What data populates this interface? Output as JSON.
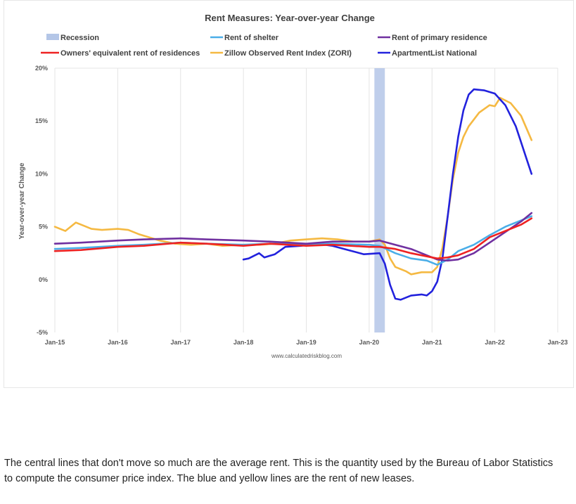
{
  "caption": "The central lines that don't move so much are the average rent. This is the quantity used by the Bureau of Labor Statistics to compute the consumer price index. The blue and yellow lines are the rent of new leases.",
  "chart_data": {
    "type": "line",
    "title": "Rent Measures: Year-over-year Change",
    "xlabel": "",
    "ylabel": "Year-over-year Change",
    "source": "www.calculatedriskblog.com",
    "x_ticks": [
      "Jan-15",
      "Jan-16",
      "Jan-17",
      "Jan-18",
      "Jan-19",
      "Jan-20",
      "Jan-21",
      "Jan-22",
      "Jan-23"
    ],
    "y_ticks": [
      "-5%",
      "0%",
      "5%",
      "10%",
      "15%",
      "20%"
    ],
    "xlim": [
      "2015-01",
      "2023-01"
    ],
    "ylim": [
      -5,
      20
    ],
    "grid": "vertical",
    "legend": [
      {
        "name": "Recession",
        "color": "#b4c6e7",
        "kind": "band"
      },
      {
        "name": "Rent of shelter",
        "color": "#4aaee8",
        "kind": "line"
      },
      {
        "name": "Rent of primary residence",
        "color": "#7030a0",
        "kind": "line"
      },
      {
        "name": "Owners' equivalent rent of residences",
        "color": "#ee2222",
        "kind": "line"
      },
      {
        "name": "Zillow Observed Rent Index (ZORI)",
        "color": "#f5b942",
        "kind": "line"
      },
      {
        "name": "ApartmentList National",
        "color": "#2222dd",
        "kind": "line"
      }
    ],
    "recession": {
      "start": "2020-02",
      "end": "2020-04"
    },
    "series": [
      {
        "name": "Zillow Observed Rent Index (ZORI)",
        "color": "#f5b942",
        "points": [
          [
            "2015-01",
            5.0
          ],
          [
            "2015-03",
            4.6
          ],
          [
            "2015-05",
            5.4
          ],
          [
            "2015-07",
            5.0
          ],
          [
            "2015-08",
            4.8
          ],
          [
            "2015-10",
            4.7
          ],
          [
            "2016-01",
            4.8
          ],
          [
            "2016-03",
            4.7
          ],
          [
            "2016-05",
            4.3
          ],
          [
            "2016-07",
            4.0
          ],
          [
            "2016-09",
            3.7
          ],
          [
            "2016-12",
            3.4
          ],
          [
            "2017-03",
            3.3
          ],
          [
            "2017-06",
            3.4
          ],
          [
            "2017-09",
            3.2
          ],
          [
            "2018-01",
            3.3
          ],
          [
            "2018-04",
            3.3
          ],
          [
            "2018-07",
            3.4
          ],
          [
            "2018-10",
            3.7
          ],
          [
            "2019-01",
            3.8
          ],
          [
            "2019-04",
            3.9
          ],
          [
            "2019-07",
            3.8
          ],
          [
            "2019-10",
            3.6
          ],
          [
            "2020-01",
            3.6
          ],
          [
            "2020-03",
            3.8
          ],
          [
            "2020-04",
            3.3
          ],
          [
            "2020-05",
            2.0
          ],
          [
            "2020-06",
            1.2
          ],
          [
            "2020-08",
            0.8
          ],
          [
            "2020-09",
            0.5
          ],
          [
            "2020-11",
            0.7
          ],
          [
            "2021-01",
            0.7
          ],
          [
            "2021-02",
            1.2
          ],
          [
            "2021-03",
            3.0
          ],
          [
            "2021-04",
            6.0
          ],
          [
            "2021-05",
            9.5
          ],
          [
            "2021-06",
            12.0
          ],
          [
            "2021-07",
            13.5
          ],
          [
            "2021-08",
            14.5
          ],
          [
            "2021-10",
            15.8
          ],
          [
            "2021-12",
            16.5
          ],
          [
            "2022-01",
            16.4
          ],
          [
            "2022-02",
            17.2
          ],
          [
            "2022-04",
            16.7
          ],
          [
            "2022-06",
            15.5
          ],
          [
            "2022-08",
            13.2
          ]
        ]
      },
      {
        "name": "ApartmentList National",
        "color": "#2222dd",
        "points": [
          [
            "2018-01",
            1.9
          ],
          [
            "2018-02",
            2.0
          ],
          [
            "2018-04",
            2.5
          ],
          [
            "2018-05",
            2.1
          ],
          [
            "2018-07",
            2.4
          ],
          [
            "2018-09",
            3.1
          ],
          [
            "2018-12",
            3.2
          ],
          [
            "2019-03",
            3.4
          ],
          [
            "2019-06",
            3.2
          ],
          [
            "2019-09",
            2.8
          ],
          [
            "2019-12",
            2.4
          ],
          [
            "2020-03",
            2.5
          ],
          [
            "2020-04",
            1.5
          ],
          [
            "2020-05",
            -0.5
          ],
          [
            "2020-06",
            -1.8
          ],
          [
            "2020-07",
            -1.9
          ],
          [
            "2020-09",
            -1.5
          ],
          [
            "2020-11",
            -1.4
          ],
          [
            "2020-12",
            -1.5
          ],
          [
            "2021-01",
            -1.1
          ],
          [
            "2021-02",
            -0.2
          ],
          [
            "2021-03",
            2.0
          ],
          [
            "2021-04",
            6.0
          ],
          [
            "2021-05",
            10.0
          ],
          [
            "2021-06",
            13.5
          ],
          [
            "2021-07",
            16.0
          ],
          [
            "2021-08",
            17.5
          ],
          [
            "2021-09",
            18.0
          ],
          [
            "2021-11",
            17.9
          ],
          [
            "2022-01",
            17.6
          ],
          [
            "2022-03",
            16.5
          ],
          [
            "2022-05",
            14.5
          ],
          [
            "2022-06",
            13.0
          ],
          [
            "2022-07",
            11.5
          ],
          [
            "2022-08",
            10.0
          ]
        ]
      },
      {
        "name": "Rent of shelter",
        "color": "#4aaee8",
        "points": [
          [
            "2015-01",
            2.9
          ],
          [
            "2015-06",
            3.0
          ],
          [
            "2016-01",
            3.2
          ],
          [
            "2016-06",
            3.3
          ],
          [
            "2017-01",
            3.5
          ],
          [
            "2017-06",
            3.4
          ],
          [
            "2018-01",
            3.3
          ],
          [
            "2018-06",
            3.4
          ],
          [
            "2019-01",
            3.3
          ],
          [
            "2019-06",
            3.4
          ],
          [
            "2020-01",
            3.3
          ],
          [
            "2020-03",
            3.2
          ],
          [
            "2020-06",
            2.5
          ],
          [
            "2020-09",
            2.0
          ],
          [
            "2020-12",
            1.8
          ],
          [
            "2021-02",
            1.4
          ],
          [
            "2021-04",
            1.9
          ],
          [
            "2021-06",
            2.7
          ],
          [
            "2021-09",
            3.3
          ],
          [
            "2021-12",
            4.2
          ],
          [
            "2022-03",
            5.0
          ],
          [
            "2022-06",
            5.6
          ],
          [
            "2022-08",
            6.0
          ]
        ]
      },
      {
        "name": "Rent of primary residence",
        "color": "#7030a0",
        "points": [
          [
            "2015-01",
            3.4
          ],
          [
            "2015-06",
            3.5
          ],
          [
            "2016-01",
            3.7
          ],
          [
            "2016-06",
            3.8
          ],
          [
            "2017-01",
            3.9
          ],
          [
            "2017-06",
            3.8
          ],
          [
            "2018-01",
            3.7
          ],
          [
            "2018-06",
            3.6
          ],
          [
            "2019-01",
            3.4
          ],
          [
            "2019-06",
            3.6
          ],
          [
            "2020-01",
            3.6
          ],
          [
            "2020-03",
            3.7
          ],
          [
            "2020-06",
            3.3
          ],
          [
            "2020-09",
            2.9
          ],
          [
            "2020-12",
            2.3
          ],
          [
            "2021-02",
            1.9
          ],
          [
            "2021-04",
            1.8
          ],
          [
            "2021-06",
            1.9
          ],
          [
            "2021-09",
            2.5
          ],
          [
            "2021-12",
            3.5
          ],
          [
            "2022-03",
            4.5
          ],
          [
            "2022-06",
            5.5
          ],
          [
            "2022-08",
            6.3
          ]
        ]
      },
      {
        "name": "Owners' equivalent rent of residences",
        "color": "#ee2222",
        "points": [
          [
            "2015-01",
            2.7
          ],
          [
            "2015-06",
            2.8
          ],
          [
            "2016-01",
            3.1
          ],
          [
            "2016-06",
            3.2
          ],
          [
            "2017-01",
            3.5
          ],
          [
            "2017-06",
            3.4
          ],
          [
            "2018-01",
            3.2
          ],
          [
            "2018-06",
            3.4
          ],
          [
            "2019-01",
            3.2
          ],
          [
            "2019-06",
            3.3
          ],
          [
            "2020-01",
            3.1
          ],
          [
            "2020-03",
            3.1
          ],
          [
            "2020-06",
            2.9
          ],
          [
            "2020-09",
            2.5
          ],
          [
            "2020-12",
            2.2
          ],
          [
            "2021-02",
            2.0
          ],
          [
            "2021-04",
            2.1
          ],
          [
            "2021-06",
            2.3
          ],
          [
            "2021-09",
            2.9
          ],
          [
            "2021-12",
            4.0
          ],
          [
            "2022-03",
            4.6
          ],
          [
            "2022-06",
            5.2
          ],
          [
            "2022-08",
            5.8
          ]
        ]
      }
    ]
  }
}
